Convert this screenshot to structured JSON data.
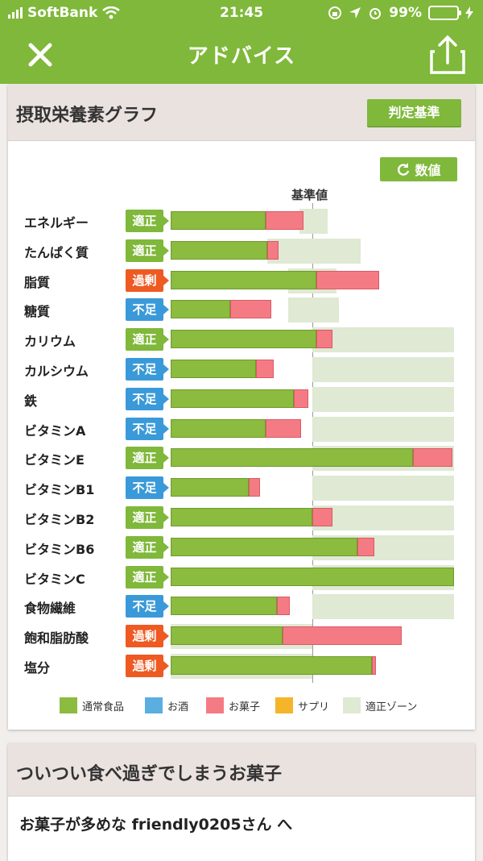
{
  "status": {
    "carrier": "SoftBank",
    "time": "21:45",
    "battery": "99%"
  },
  "nav": {
    "title": "アドバイス"
  },
  "graph_card": {
    "title": "摂取栄養素グラフ",
    "criteria_button": "判定基準",
    "number_button": "数値",
    "baseline_label": "基準値"
  },
  "status_labels": {
    "ok": "適正",
    "low": "不足",
    "high": "過剰"
  },
  "chart_data": {
    "type": "bar",
    "orientation": "horizontal",
    "stacked": true,
    "reference_label": "基準値",
    "reference_value": 100,
    "xlim": [
      0,
      200
    ],
    "series_names": [
      "通常食品",
      "お酒",
      "お菓子",
      "サプリ",
      "適正ゾーン"
    ],
    "categories": [
      "エネルギー",
      "たんぱく質",
      "脂質",
      "糖質",
      "カリウム",
      "カルシウム",
      "鉄",
      "ビタミンA",
      "ビタミンE",
      "ビタミンB1",
      "ビタミンB2",
      "ビタミンB6",
      "ビタミンC",
      "食物繊維",
      "飽和脂肪酸",
      "塩分"
    ],
    "rows": [
      {
        "name": "エネルギー",
        "status": "ok",
        "food": 67,
        "snack": 27,
        "zone": [
          91,
          111
        ]
      },
      {
        "name": "たんぱく質",
        "status": "ok",
        "food": 68,
        "snack": 8,
        "zone": [
          68,
          134
        ]
      },
      {
        "name": "脂質",
        "status": "high",
        "food": 103,
        "snack": 44,
        "zone": [
          83,
          117
        ]
      },
      {
        "name": "糖質",
        "status": "low",
        "food": 42,
        "snack": 29,
        "zone": [
          83,
          119
        ]
      },
      {
        "name": "カリウム",
        "status": "ok",
        "food": 103,
        "snack": 11,
        "zone": [
          100,
          200
        ]
      },
      {
        "name": "カルシウム",
        "status": "low",
        "food": 60,
        "snack": 13,
        "zone": [
          100,
          200
        ]
      },
      {
        "name": "鉄",
        "status": "low",
        "food": 87,
        "snack": 10,
        "zone": [
          100,
          200
        ]
      },
      {
        "name": "ビタミンA",
        "status": "low",
        "food": 67,
        "snack": 25,
        "zone": [
          100,
          200
        ]
      },
      {
        "name": "ビタミンE",
        "status": "ok",
        "food": 171,
        "snack": 28,
        "zone": [
          100,
          200
        ]
      },
      {
        "name": "ビタミンB1",
        "status": "low",
        "food": 55,
        "snack": 8,
        "zone": [
          100,
          200
        ]
      },
      {
        "name": "ビタミンB2",
        "status": "ok",
        "food": 100,
        "snack": 14,
        "zone": [
          100,
          200
        ]
      },
      {
        "name": "ビタミンB6",
        "status": "ok",
        "food": 132,
        "snack": 12,
        "zone": [
          100,
          200
        ]
      },
      {
        "name": "ビタミンC",
        "status": "ok",
        "food": 200,
        "snack": 0,
        "zone": [
          100,
          200
        ]
      },
      {
        "name": "食物繊維",
        "status": "low",
        "food": 75,
        "snack": 9,
        "zone": [
          100,
          200
        ]
      },
      {
        "name": "飽和脂肪酸",
        "status": "high",
        "food": 79,
        "snack": 84,
        "zone": [
          0,
          100
        ]
      },
      {
        "name": "塩分",
        "status": "high",
        "food": 142,
        "snack": 3,
        "zone": [
          0,
          100
        ]
      }
    ],
    "legend": [
      {
        "label": "通常食品",
        "color": "#8bbb3f"
      },
      {
        "label": "お酒",
        "color": "#5aaee0"
      },
      {
        "label": "お菓子",
        "color": "#f47b84"
      },
      {
        "label": "サプリ",
        "color": "#f4b52a"
      },
      {
        "label": "適正ゾーン",
        "color": "#dfe9d3"
      }
    ],
    "legend_position": "bottom"
  },
  "colors": {
    "brand": "#7fb83a",
    "food": "#8bbb3f",
    "snack": "#f47b84",
    "zone": "#dfe9d3",
    "ok": "#7fb83a",
    "low": "#3a9ad9",
    "high": "#ee5a22"
  },
  "snack_card": {
    "title": "ついつい食べ過ぎでしまうお菓子",
    "message": "お菓子が多めな friendly0205さん へ"
  }
}
